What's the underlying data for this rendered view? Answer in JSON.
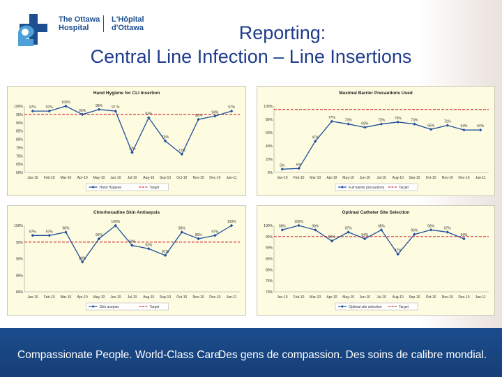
{
  "logo": {
    "en_line1": "The Ottawa",
    "en_line2": "Hospital",
    "fr_line1": "L'Hôpital",
    "fr_line2": "d'Ottawa"
  },
  "title": {
    "line1": "Reporting:",
    "line2": "Central Line Infection – Line Insertions"
  },
  "footer": {
    "english": "Compassionate People. World-Class Care.",
    "french": "Des gens de compassion. Des soins de calibre mondial."
  },
  "colors": {
    "series": "#1f4e9c",
    "target": "#d0343a",
    "panel_bg": "#fdfbe0",
    "footer_bg": "#1a4c8c",
    "title": "#1e3c8c"
  },
  "chart_data": [
    {
      "type": "line",
      "title": "Hand Hygiene for CLI Insertion",
      "categories": [
        "Jan-10",
        "Feb-10",
        "Mar-10",
        "Apr-10",
        "May-10",
        "Jun-10",
        "Jul-10",
        "Aug-10",
        "Sep-10",
        "Oct-10",
        "Nov-10",
        "Dec-10",
        "Jan-11"
      ],
      "series": [
        {
          "name": "Hand Hygiene",
          "values": [
            97,
            97,
            100,
            95,
            98,
            97,
            72,
            93,
            79,
            71,
            92,
            94,
            97
          ],
          "labels": [
            "97%",
            "97%",
            "100%",
            "95%",
            "98%",
            "97 %",
            "72%",
            "93%",
            "79%",
            "71%",
            "92%",
            "94%",
            "97%"
          ]
        }
      ],
      "target": {
        "name": "Target",
        "value": 95
      },
      "ylim": [
        60,
        100
      ],
      "yticks": [
        100,
        95,
        90,
        85,
        80,
        75,
        70,
        65,
        60
      ],
      "ytick_labels": [
        "100%",
        "95%",
        "90%",
        "85%",
        "80%",
        "75%",
        "70%",
        "65%",
        "60%"
      ],
      "legend": "bottom",
      "grid": false
    },
    {
      "type": "line",
      "title": "Maximal Barrier Precautions Used",
      "categories": [
        "Jan-10",
        "Feb-10",
        "Mar-10",
        "Apr-10",
        "May-10",
        "Jun-10",
        "Jul-10",
        "Aug-10",
        "Sep-10",
        "Oct-10",
        "Nov-10",
        "Dec-10",
        "Jan-11"
      ],
      "series": [
        {
          "name": "Full barrier precautions",
          "values": [
            5,
            6,
            47,
            77,
            73,
            68,
            73,
            76,
            73,
            65,
            71,
            64,
            64
          ],
          "labels": [
            "5%",
            "6%",
            "47%",
            "77%",
            "73%",
            "68%",
            "73%",
            "76%",
            "73%",
            "65%",
            "71%",
            "64%",
            "64%"
          ]
        }
      ],
      "target": {
        "name": "Target",
        "value": 95
      },
      "ylim": [
        0,
        100
      ],
      "yticks": [
        100,
        80,
        60,
        40,
        20,
        0
      ],
      "ytick_labels": [
        "100%",
        "80%",
        "60%",
        "40%",
        "20%",
        "0%"
      ],
      "legend": "bottom",
      "grid": false
    },
    {
      "type": "line",
      "title": "Chlorhexadine Skin Antisepsis",
      "categories": [
        "Jan-10",
        "Feb-10",
        "Mar-10",
        "Apr-10",
        "May-10",
        "Jun-10",
        "Jul-10",
        "Aug-10",
        "Sep-10",
        "Oct-10",
        "Nov-10",
        "Dec-10",
        "Jan-11"
      ],
      "series": [
        {
          "name": "Skin asepsis",
          "values": [
            97,
            97,
            98,
            89,
            96,
            100,
            94,
            93,
            91,
            98,
            96,
            97,
            100
          ],
          "labels": [
            "97%",
            "97%",
            "98%",
            "89%",
            "96%",
            "100%",
            "94%",
            "93%",
            "91%",
            "98%",
            "96%",
            "97%",
            "100%"
          ]
        }
      ],
      "target": {
        "name": "Target",
        "value": 95
      },
      "ylim": [
        80,
        100
      ],
      "yticks": [
        100,
        95,
        90,
        85,
        80
      ],
      "ytick_labels": [
        "100%",
        "95%",
        "90%",
        "85%",
        "80%"
      ],
      "legend": "bottom",
      "grid": false
    },
    {
      "type": "line",
      "title": "Optimal Catheter Site Selection",
      "categories": [
        "Jan-10",
        "Feb-10",
        "Mar-10",
        "Apr-10",
        "May-10",
        "Jun-10",
        "Jul-10",
        "Aug-10",
        "Sep-10",
        "Oct-10",
        "Nov-10",
        "Dec-10",
        "Jan-11"
      ],
      "series": [
        {
          "name": "Optimal site selection",
          "values": [
            98,
            100,
            98,
            93,
            97,
            94,
            98,
            87,
            96,
            98,
            97,
            94,
            null
          ],
          "labels": [
            "98%",
            "100%",
            "98%",
            "93%",
            "97%",
            "94%",
            "98%",
            "87%",
            "96%",
            "98%",
            "97%",
            "94%",
            ""
          ]
        }
      ],
      "target": {
        "name": "Target",
        "value": 95
      },
      "ylim": [
        70,
        100
      ],
      "yticks": [
        100,
        95,
        90,
        85,
        80,
        75,
        70
      ],
      "ytick_labels": [
        "100%",
        "95%",
        "90%",
        "85%",
        "80%",
        "75%",
        "70%"
      ],
      "legend": "bottom",
      "grid": false
    }
  ]
}
